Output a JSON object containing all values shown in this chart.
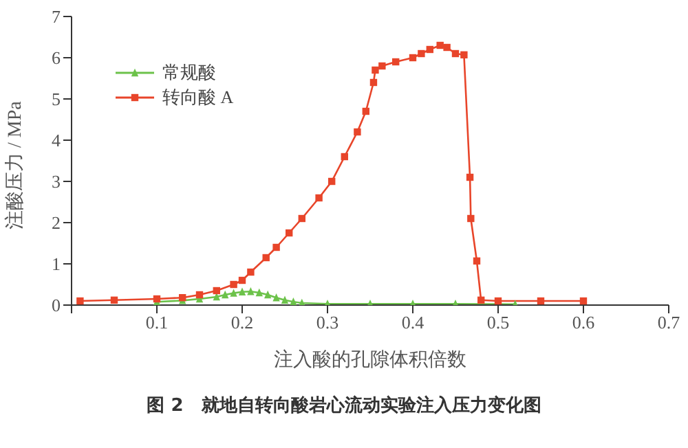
{
  "chart_data": {
    "type": "line",
    "title": "图 2　就地自转向酸岩心流动实验注入压力变化图",
    "xlabel": "注入酸的孔隙体积倍数",
    "ylabel": "注酸压力 / MPa",
    "xlim": [
      0,
      0.7
    ],
    "xticks": [
      {
        "value": 0,
        "label": null
      },
      0.1,
      0.2,
      0.3,
      0.4,
      0.5,
      0.6,
      0.7
    ],
    "ylim": [
      0,
      7
    ],
    "yticks": [
      0,
      1,
      2,
      3,
      4,
      5,
      6,
      7
    ],
    "grid": false,
    "legend": "top left",
    "line_style": "solid",
    "series": [
      {
        "name": "常规酸",
        "color": "#6cc24a",
        "marker": "triangle",
        "x": [
          0.1,
          0.13,
          0.15,
          0.17,
          0.18,
          0.19,
          0.2,
          0.21,
          0.22,
          0.23,
          0.24,
          0.25,
          0.26,
          0.27,
          0.3,
          0.35,
          0.4,
          0.45,
          0.52
        ],
        "values": [
          0.08,
          0.11,
          0.15,
          0.2,
          0.25,
          0.29,
          0.32,
          0.33,
          0.3,
          0.25,
          0.18,
          0.12,
          0.08,
          0.05,
          0.03,
          0.03,
          0.03,
          0.03,
          0.02
        ]
      },
      {
        "name": "转向酸 A",
        "color": "#e8452a",
        "marker": "square",
        "x": [
          0.01,
          0.05,
          0.1,
          0.13,
          0.15,
          0.17,
          0.19,
          0.2,
          0.21,
          0.228,
          0.24,
          0.255,
          0.27,
          0.29,
          0.305,
          0.32,
          0.335,
          0.345,
          0.354,
          0.356,
          0.364,
          0.38,
          0.4,
          0.41,
          0.42,
          0.432,
          0.44,
          0.45,
          0.46,
          0.467,
          0.468,
          0.475,
          0.48,
          0.5,
          0.55,
          0.6
        ],
        "values": [
          0.1,
          0.12,
          0.15,
          0.18,
          0.25,
          0.35,
          0.5,
          0.6,
          0.8,
          1.15,
          1.4,
          1.75,
          2.1,
          2.6,
          3.0,
          3.6,
          4.2,
          4.7,
          5.4,
          5.7,
          5.8,
          5.9,
          6.0,
          6.1,
          6.2,
          6.3,
          6.25,
          6.1,
          6.07,
          3.1,
          2.1,
          1.07,
          0.12,
          0.1,
          0.1,
          0.1
        ]
      }
    ]
  }
}
